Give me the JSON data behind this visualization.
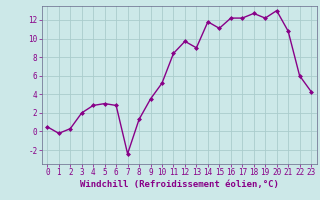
{
  "x": [
    0,
    1,
    2,
    3,
    4,
    5,
    6,
    7,
    8,
    9,
    10,
    11,
    12,
    13,
    14,
    15,
    16,
    17,
    18,
    19,
    20,
    21,
    22,
    23
  ],
  "y": [
    0.5,
    -0.2,
    0.3,
    2.0,
    2.8,
    3.0,
    2.8,
    -2.4,
    1.3,
    3.5,
    5.2,
    8.4,
    9.7,
    9.0,
    11.8,
    11.1,
    12.2,
    12.2,
    12.7,
    12.2,
    13.0,
    10.8,
    6.0,
    4.3
  ],
  "line_color": "#880088",
  "marker": "D",
  "markersize": 2.0,
  "linewidth": 1.0,
  "xlabel": "Windchill (Refroidissement éolien,°C)",
  "xlabel_fontsize": 6.5,
  "bg_color": "#cce8e8",
  "grid_color": "#aacccc",
  "ylim": [
    -3.5,
    13.5
  ],
  "xlim": [
    -0.5,
    23.5
  ],
  "yticks": [
    -2,
    0,
    2,
    4,
    6,
    8,
    10,
    12
  ],
  "xticks": [
    0,
    1,
    2,
    3,
    4,
    5,
    6,
    7,
    8,
    9,
    10,
    11,
    12,
    13,
    14,
    15,
    16,
    17,
    18,
    19,
    20,
    21,
    22,
    23
  ],
  "tick_fontsize": 5.5,
  "tick_color": "#880088",
  "spine_color": "#666688"
}
